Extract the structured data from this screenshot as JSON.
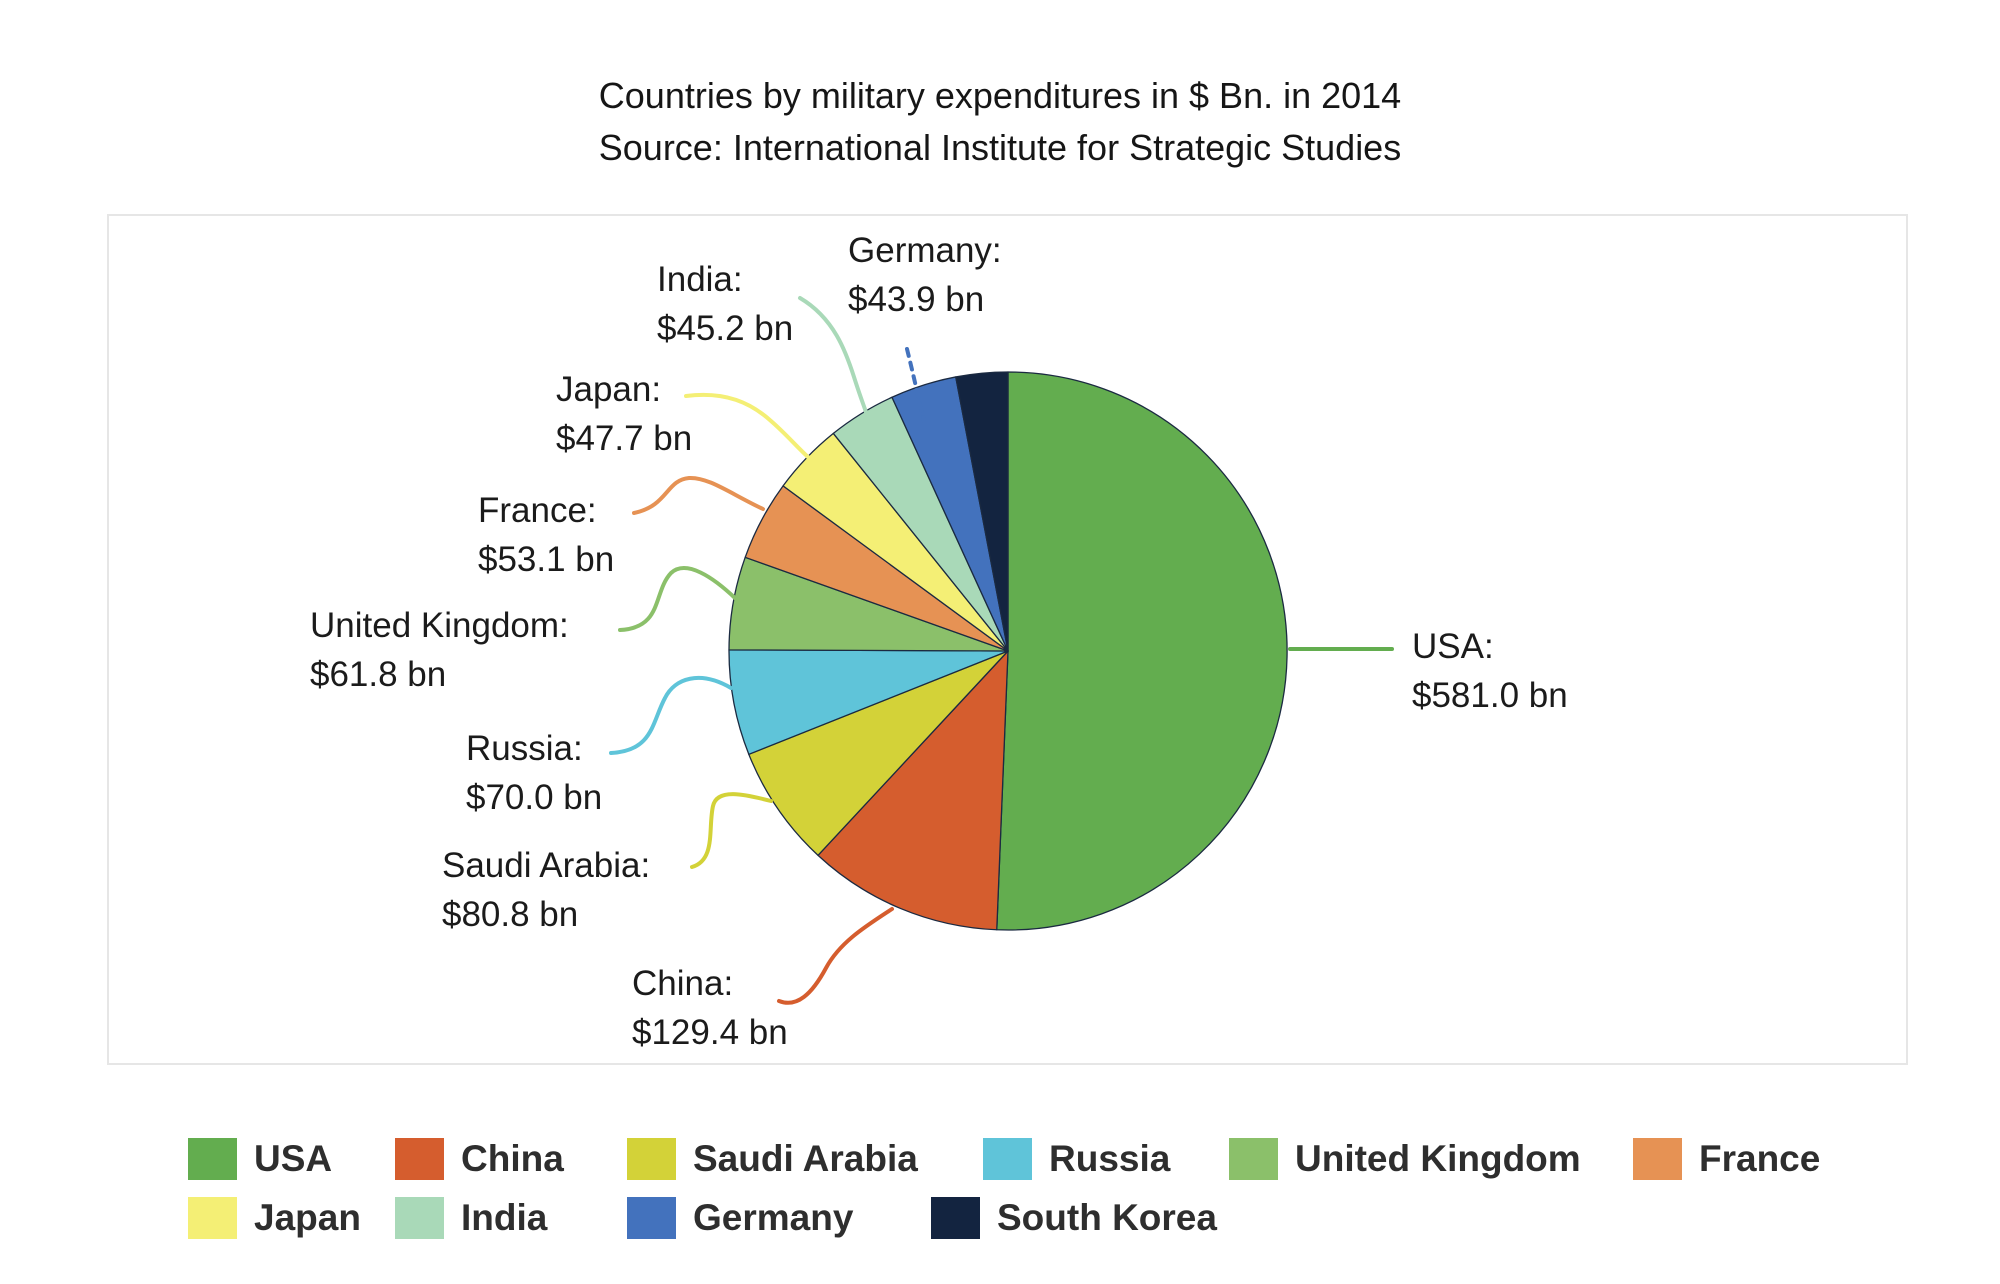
{
  "title": "Countries by military expenditures in $ Bn. in 2014",
  "subtitle": "Source: International Institute for Strategic Studies",
  "chart_data": {
    "type": "pie",
    "title": "Countries by military expenditures in $ Bn. in 2014",
    "subtitle": "Source: International Institute for Strategic Studies",
    "unit": "USD billions",
    "start_angle": "12 o'clock, clockwise",
    "outline_color": "#1b2a41",
    "slices": [
      {
        "name": "USA",
        "value_bn": 581.0,
        "callout_name": "USA:",
        "callout_value": "$581.0 bn",
        "color": "#63ad4f"
      },
      {
        "name": "China",
        "value_bn": 129.4,
        "callout_name": "China:",
        "callout_value": "$129.4 bn",
        "color": "#d55d2e"
      },
      {
        "name": "Saudi Arabia",
        "value_bn": 80.8,
        "callout_name": "Saudi Arabia:",
        "callout_value": "$80.8 bn",
        "color": "#d3d238"
      },
      {
        "name": "Russia",
        "value_bn": 70.0,
        "callout_name": "Russia:",
        "callout_value": "$70.0 bn",
        "color": "#5fc4d9"
      },
      {
        "name": "United Kingdom",
        "value_bn": 61.8,
        "callout_name": "United Kingdom:",
        "callout_value": "$61.8 bn",
        "color": "#8bc06a"
      },
      {
        "name": "France",
        "value_bn": 53.1,
        "callout_name": "France:",
        "callout_value": "$53.1 bn",
        "color": "#e69254"
      },
      {
        "name": "Japan",
        "value_bn": 47.7,
        "callout_name": "Japan:",
        "callout_value": "$47.7 bn",
        "color": "#f4ef75"
      },
      {
        "name": "India",
        "value_bn": 45.2,
        "callout_name": "India:",
        "callout_value": "$45.2 bn",
        "color": "#a9d9b8"
      },
      {
        "name": "Germany",
        "value_bn": 43.9,
        "callout_name": "Germany:",
        "callout_value": "$43.9 bn",
        "color": "#4372bd"
      },
      {
        "name": "South Korea",
        "value_bn": 34.4,
        "callout_name": null,
        "callout_value": null,
        "color": "#132440",
        "value_shown_on_chart": false
      }
    ],
    "legend": {
      "position": "bottom",
      "rows": [
        [
          "USA",
          "China",
          "Saudi Arabia",
          "Russia",
          "United Kingdom",
          "France"
        ],
        [
          "Japan",
          "India",
          "Germany",
          "South Korea"
        ]
      ]
    }
  }
}
